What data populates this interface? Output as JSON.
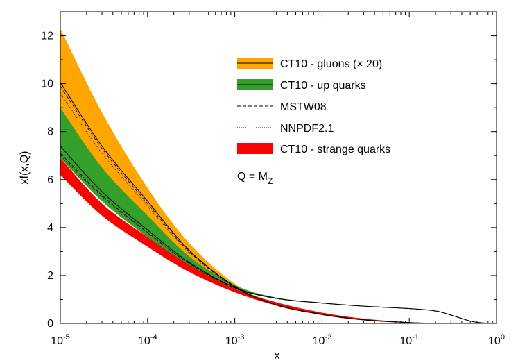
{
  "chart_data": {
    "type": "area",
    "xscale": "log",
    "xlim": [
      1e-05,
      1
    ],
    "ylim": [
      0,
      13
    ],
    "xlabel": "x",
    "ylabel": "xf(x,Q)",
    "grid": false,
    "legend_position": "top-right",
    "annotation": {
      "text": "Q = M",
      "subscript": "Z"
    },
    "x_ticks": [
      {
        "base": "10",
        "exp": "-5",
        "value": 1e-05
      },
      {
        "base": "10",
        "exp": "-4",
        "value": 0.0001
      },
      {
        "base": "10",
        "exp": "-3",
        "value": 0.001
      },
      {
        "base": "10",
        "exp": "-2",
        "value": 0.01
      },
      {
        "base": "10",
        "exp": "-1",
        "value": 0.1
      },
      {
        "base": "10",
        "exp": "0",
        "value": 1
      }
    ],
    "y_ticks": [
      {
        "label": "0",
        "value": 0
      },
      {
        "label": "2",
        "value": 2
      },
      {
        "label": "4",
        "value": 4
      },
      {
        "label": "6",
        "value": 6
      },
      {
        "label": "8",
        "value": 8
      },
      {
        "label": "10",
        "value": 10
      },
      {
        "label": "12",
        "value": 12
      }
    ],
    "legend": [
      {
        "label": "CT10 - gluons (× 20)",
        "kind": "band",
        "color": "#ffa500",
        "with_line": true
      },
      {
        "label": "CT10 - up quarks",
        "kind": "band",
        "color": "#33a02c",
        "with_line": true
      },
      {
        "label": "MSTW08",
        "kind": "dashed"
      },
      {
        "label": "NNPDF2.1",
        "kind": "dotted"
      },
      {
        "label": "CT10 - strange quarks",
        "kind": "band",
        "color": "#ff0000",
        "with_line": false
      }
    ],
    "series": [
      {
        "name": "CT10 - gluons (× 20)",
        "color": "#ffa500",
        "x": [
          1e-05,
          3e-05,
          0.0001,
          0.0003,
          0.001,
          0.003,
          0.01,
          0.03,
          0.1,
          0.2
        ],
        "central": [
          10.05,
          7.4,
          5.1,
          3.05,
          1.55,
          0.78,
          0.38,
          0.15,
          0.035,
          0.005
        ],
        "upper": [
          12.3,
          8.8,
          5.65,
          3.35,
          1.65,
          0.82,
          0.4,
          0.16,
          0.04,
          0.007
        ],
        "lower": [
          8.3,
          6.2,
          4.35,
          2.75,
          1.45,
          0.74,
          0.36,
          0.14,
          0.03,
          0.004
        ],
        "mstw08": [
          9.9,
          7.3,
          5.0,
          3.0,
          1.53,
          0.77,
          0.37,
          0.15,
          0.034,
          0.005
        ],
        "nnpdf21": [
          9.6,
          7.1,
          4.9,
          2.95,
          1.5,
          0.76,
          0.37,
          0.15,
          0.034,
          0.005
        ]
      },
      {
        "name": "CT10 - up quarks",
        "color": "#33a02c",
        "x": [
          1e-05,
          3e-05,
          0.0001,
          0.0003,
          0.001,
          0.003,
          0.01,
          0.03,
          0.1,
          0.2,
          0.3,
          0.5,
          0.7,
          0.9
        ],
        "central": [
          7.4,
          5.5,
          3.9,
          2.55,
          1.5,
          1.05,
          0.85,
          0.72,
          0.62,
          0.52,
          0.35,
          0.1,
          0.02,
          0.0
        ],
        "upper": [
          9.0,
          6.5,
          4.5,
          2.8,
          1.6,
          1.08,
          0.87,
          0.73,
          0.63,
          0.53,
          0.36,
          0.1,
          0.02,
          0.0
        ],
        "lower": [
          6.9,
          5.1,
          3.6,
          2.4,
          1.45,
          1.03,
          0.84,
          0.71,
          0.61,
          0.51,
          0.34,
          0.1,
          0.02,
          0.0
        ],
        "mstw08": [
          7.1,
          5.35,
          3.8,
          2.5,
          1.48,
          1.04,
          0.85,
          0.72,
          0.62,
          0.52,
          0.35,
          0.1,
          0.02,
          0.0
        ],
        "nnpdf21": [
          7.0,
          5.3,
          3.78,
          2.5,
          1.48,
          1.04,
          0.85,
          0.72,
          0.62,
          0.52,
          0.35,
          0.1,
          0.02,
          0.0
        ]
      },
      {
        "name": "CT10 - strange quarks",
        "color": "#ff0000",
        "x": [
          1e-05,
          3e-05,
          0.0001,
          0.0003,
          0.001,
          0.003,
          0.01,
          0.03,
          0.1,
          0.2
        ],
        "upper": [
          6.9,
          5.0,
          3.6,
          2.45,
          1.45,
          0.88,
          0.45,
          0.2,
          0.05,
          0.01
        ],
        "lower": [
          6.2,
          4.5,
          3.2,
          2.15,
          1.3,
          0.75,
          0.35,
          0.13,
          0.02,
          0.0
        ]
      }
    ]
  }
}
